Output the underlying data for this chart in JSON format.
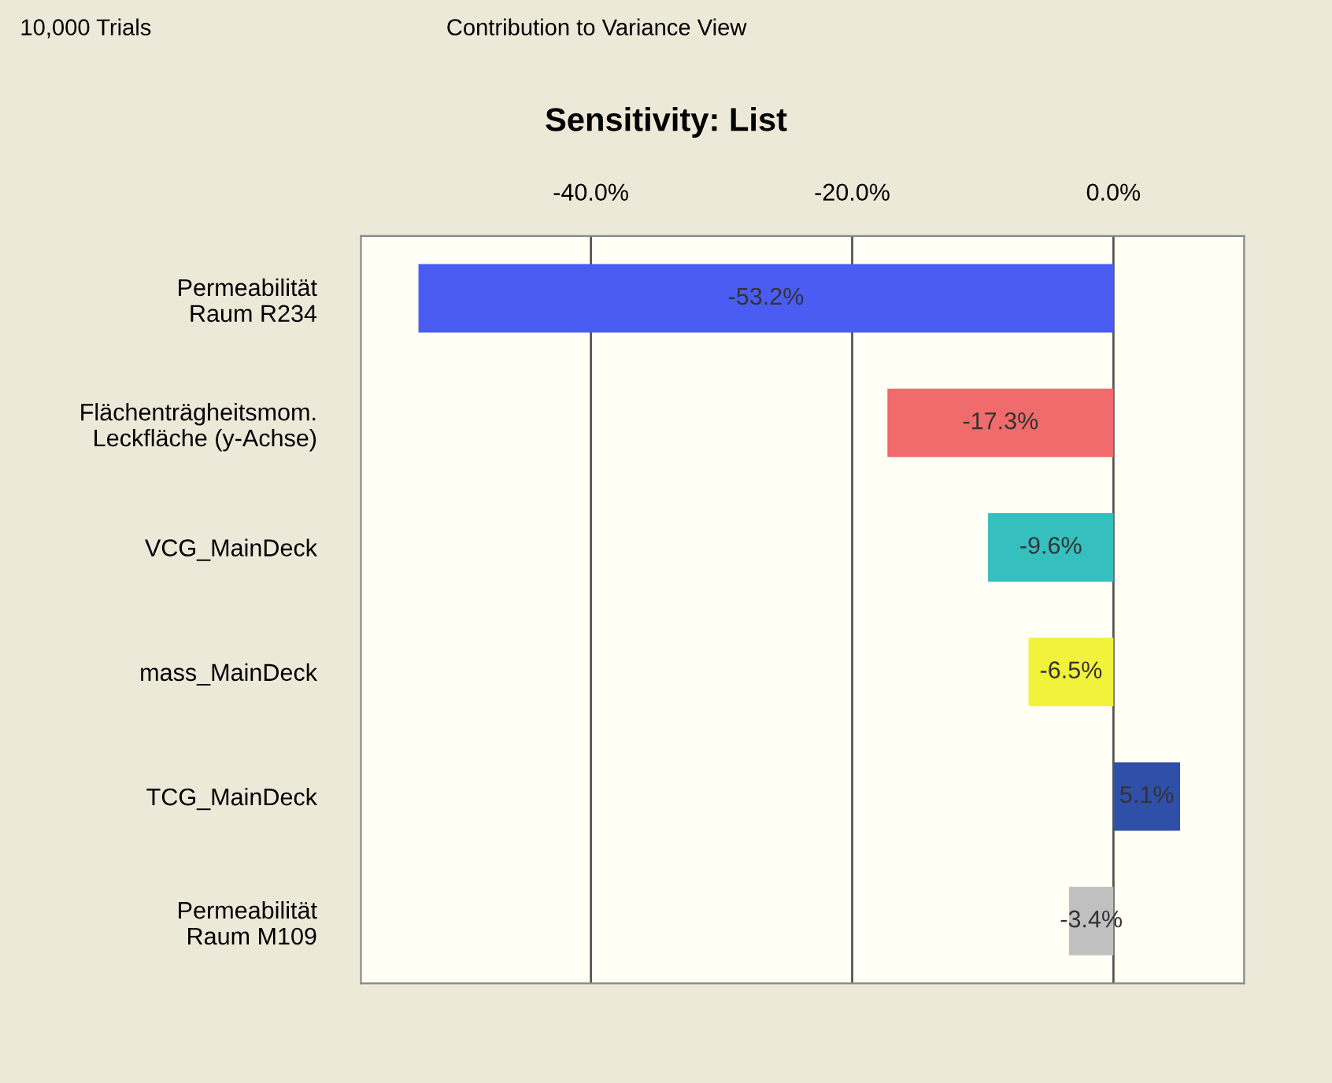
{
  "chart_data": {
    "type": "bar",
    "orientation": "horizontal",
    "title": "Sensitivity: List",
    "categories": [
      "Permeabilität\nRaum R234",
      "Flächenträgheitsmom.\nLeckfläche (y-Achse)",
      "VCG_MainDeck",
      "mass_MainDeck",
      "TCG_MainDeck",
      "Permeabilität\nRaum M109"
    ],
    "values": [
      -53.2,
      -17.3,
      -9.6,
      -6.5,
      5.1,
      -3.4
    ],
    "colors": [
      "#4a5cf2",
      "#f06b6b",
      "#35bfbf",
      "#f2f23c",
      "#2f4fa8",
      "#c0c0c0"
    ],
    "value_labels": [
      "-53.2%",
      "-17.3%",
      "-9.6%",
      "-6.5%",
      "5.1%",
      "-3.4%"
    ],
    "xlim": [
      -57.6,
      10
    ],
    "xticks": [
      {
        "value": -40,
        "label": "-40.0%"
      },
      {
        "value": -20,
        "label": "-20.0%"
      },
      {
        "value": 0,
        "label": "0.0%"
      }
    ],
    "grid": "x",
    "legend": false,
    "annotations": [
      "10,000 Trials",
      "Contribution to Variance View"
    ]
  }
}
